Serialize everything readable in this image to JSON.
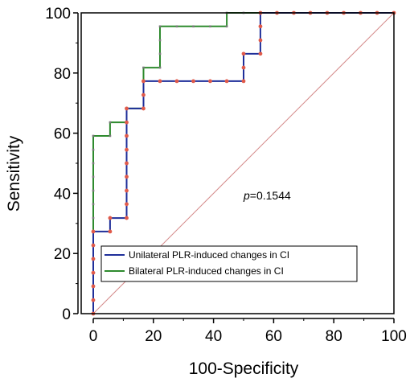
{
  "chart_data": {
    "type": "line",
    "title": "",
    "xlabel": "100-Specificity",
    "ylabel": "Sensitivity",
    "xlim": [
      0,
      100
    ],
    "ylim": [
      0,
      100
    ],
    "xticks": [
      0,
      20,
      40,
      60,
      80,
      100
    ],
    "yticks": [
      0,
      20,
      40,
      60,
      80,
      100
    ],
    "grid": false,
    "legend_position": "bottom-left",
    "annotation": {
      "prefix": "p",
      "value": "=0.1544"
    },
    "reference_line": {
      "from": [
        0,
        0
      ],
      "to": [
        100,
        100
      ],
      "color": "#d48a8a"
    },
    "series": [
      {
        "name": "Unilateral PLR-induced changes in CI",
        "color": "#1f2f9a",
        "marker_color": "#e05a4a",
        "points": [
          [
            0,
            0
          ],
          [
            0,
            4.5
          ],
          [
            0,
            9.1
          ],
          [
            0,
            13.6
          ],
          [
            0,
            18.2
          ],
          [
            0,
            22.7
          ],
          [
            0,
            27.3
          ],
          [
            5.6,
            27.3
          ],
          [
            5.6,
            31.8
          ],
          [
            11.1,
            31.8
          ],
          [
            11.1,
            36.4
          ],
          [
            11.1,
            40.9
          ],
          [
            11.1,
            45.5
          ],
          [
            11.1,
            50
          ],
          [
            11.1,
            54.5
          ],
          [
            11.1,
            59.1
          ],
          [
            11.1,
            63.6
          ],
          [
            11.1,
            68.2
          ],
          [
            16.7,
            68.2
          ],
          [
            16.7,
            72.7
          ],
          [
            16.7,
            77.3
          ],
          [
            22.2,
            77.3
          ],
          [
            27.8,
            77.3
          ],
          [
            33.3,
            77.3
          ],
          [
            38.9,
            77.3
          ],
          [
            44.4,
            77.3
          ],
          [
            50,
            77.3
          ],
          [
            50,
            81.8
          ],
          [
            50,
            86.4
          ],
          [
            55.6,
            86.4
          ],
          [
            55.6,
            90.9
          ],
          [
            55.6,
            95.5
          ],
          [
            55.6,
            100
          ],
          [
            61.1,
            100
          ],
          [
            66.7,
            100
          ],
          [
            72.2,
            100
          ],
          [
            77.8,
            100
          ],
          [
            83.3,
            100
          ],
          [
            88.9,
            100
          ],
          [
            94.4,
            100
          ],
          [
            100,
            100
          ]
        ]
      },
      {
        "name": "Bilateral PLR-induced changes in CI",
        "color": "#2e8b2e",
        "marker_color": "#777777",
        "points": [
          [
            0,
            0
          ],
          [
            0,
            4.5
          ],
          [
            0,
            9.1
          ],
          [
            0,
            13.6
          ],
          [
            0,
            18.2
          ],
          [
            0,
            22.7
          ],
          [
            0,
            27.3
          ],
          [
            0,
            31.8
          ],
          [
            0,
            36.4
          ],
          [
            0,
            40.9
          ],
          [
            0,
            45.5
          ],
          [
            0,
            50
          ],
          [
            0,
            54.5
          ],
          [
            0,
            59.1
          ],
          [
            5.6,
            59.1
          ],
          [
            5.6,
            63.6
          ],
          [
            11.1,
            63.6
          ],
          [
            11.1,
            68.2
          ],
          [
            16.7,
            68.2
          ],
          [
            16.7,
            72.7
          ],
          [
            16.7,
            77.3
          ],
          [
            16.7,
            81.8
          ],
          [
            22.2,
            81.8
          ],
          [
            22.2,
            86.4
          ],
          [
            22.2,
            90.9
          ],
          [
            22.2,
            95.5
          ],
          [
            27.8,
            95.5
          ],
          [
            33.3,
            95.5
          ],
          [
            38.9,
            95.5
          ],
          [
            44.4,
            95.5
          ],
          [
            44.4,
            100
          ],
          [
            50,
            100
          ],
          [
            55.6,
            100
          ],
          [
            61.1,
            100
          ],
          [
            66.7,
            100
          ],
          [
            72.2,
            100
          ],
          [
            77.8,
            100
          ],
          [
            83.3,
            100
          ],
          [
            88.9,
            100
          ],
          [
            94.4,
            100
          ],
          [
            100,
            100
          ]
        ]
      }
    ]
  }
}
